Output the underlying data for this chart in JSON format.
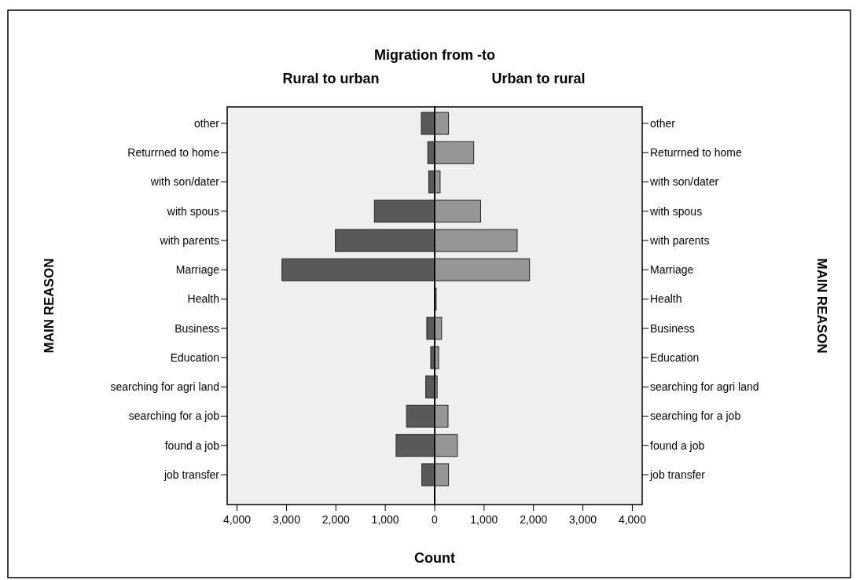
{
  "chart_data": [
    {
      "type": "bar",
      "orientation": "horizontal",
      "title": "Rural to urban",
      "annotations": [
        "Migration from -to"
      ],
      "xlabel": "Count",
      "ylabel": "MAIN REASON",
      "categories": [
        "other",
        "Returrned to home",
        "with son/dater",
        "with spous",
        "with parents",
        "Marriage",
        "Health",
        "Business",
        "Education",
        "searching for agri land",
        "searching for a job",
        "found a job",
        "job transfer"
      ],
      "values": [
        270,
        140,
        120,
        1220,
        2010,
        3090,
        0,
        160,
        80,
        180,
        570,
        780,
        260
      ],
      "color": "#595959",
      "xlim": [
        4200,
        0
      ],
      "xticks": [
        {
          "value": 4000,
          "label": "4,000"
        },
        {
          "value": 3000,
          "label": "3,000"
        },
        {
          "value": 2000,
          "label": "2,000"
        },
        {
          "value": 1000,
          "label": "1,000"
        },
        0
      ]
    },
    {
      "type": "bar",
      "orientation": "horizontal",
      "title": "Urban to rural",
      "ylabel": "MAIN REASON",
      "categories": [
        "other",
        "Returrned to home",
        "with son/dater",
        "with spous",
        "with parents",
        "Marriage",
        "Health",
        "Business",
        "Education",
        "searching for agri land",
        "searching for a job",
        "found a job",
        "job transfer"
      ],
      "values": [
        280,
        790,
        110,
        930,
        1670,
        1920,
        30,
        140,
        80,
        50,
        270,
        460,
        280
      ],
      "color": "#969696",
      "xlim": [
        0,
        4200
      ],
      "xticks": [
        {
          "value": 1000,
          "label": "1,000"
        },
        {
          "value": 2000,
          "label": "2,000"
        },
        {
          "value": 3000,
          "label": "3,000"
        },
        {
          "value": 4000,
          "label": "4,000"
        }
      ]
    }
  ]
}
